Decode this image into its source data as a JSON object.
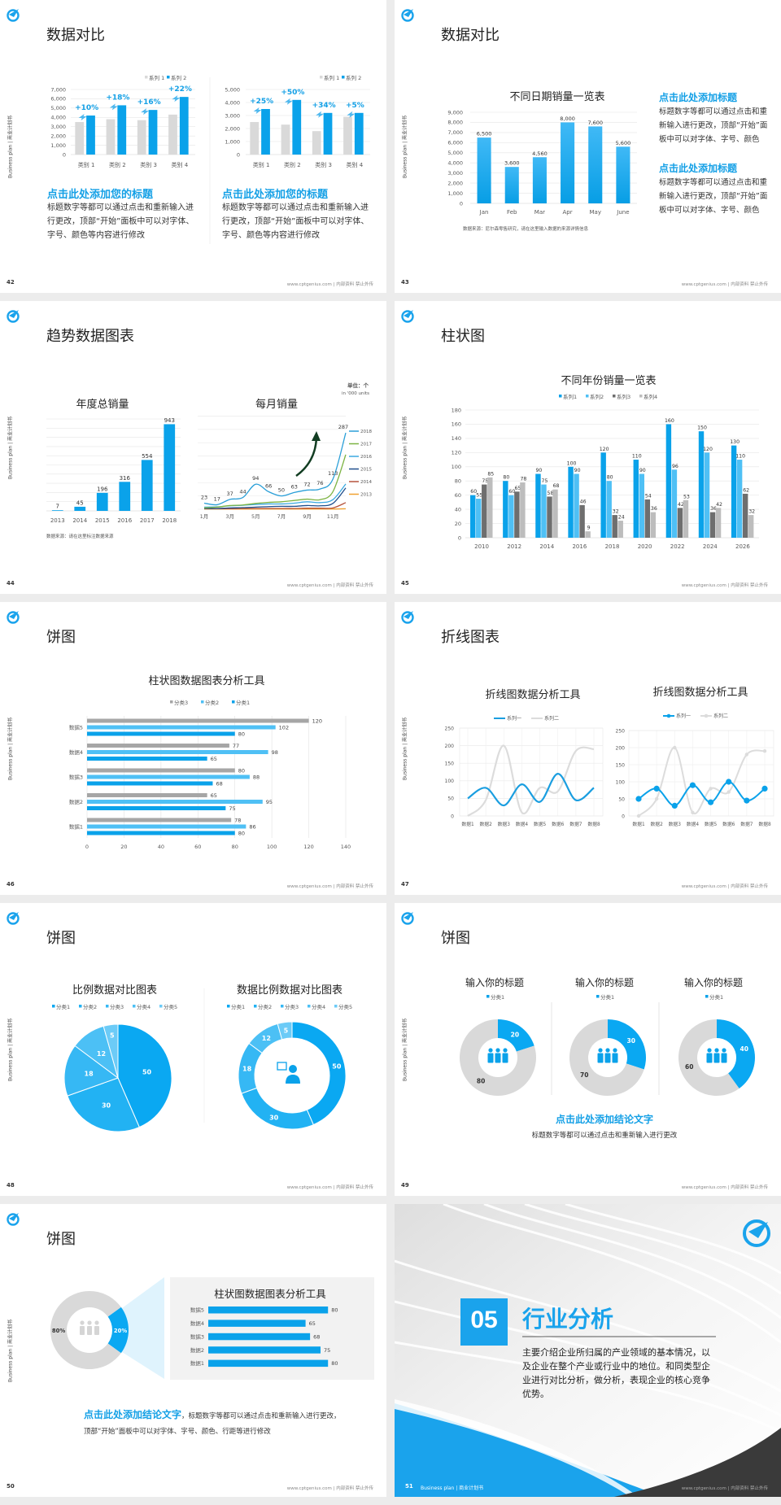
{
  "common": {
    "side_label": "Business plan | 商业计划书",
    "footer": "www.cptgenius.com | 内部资料 禁止外传"
  },
  "slides": {
    "s42": {
      "page": "42",
      "title": "数据对比",
      "blocks": [
        {
          "heading": "点击此处添加您的标题",
          "body": "标题数字等都可以通过点击和重新输入进行更改，顶部“开始”面板中可以对字体、字号、颜色等内容进行修改"
        },
        {
          "heading": "点击此处添加您的标题",
          "body": "标题数字等都可以通过点击和重新输入进行更改，顶部“开始”面板中可以对字体、字号、颜色等内容进行修改"
        }
      ]
    },
    "s43": {
      "page": "43",
      "title": "数据对比",
      "source": "数据来源：尼尔森零售研究，请在这里输入数据的来源详情信息",
      "blocks": [
        {
          "heading": "点击此处添加标题",
          "body": "标题数字等都可以通过点击和重新输入进行更改，顶部“开始”面板中可以对字体、字号、颜色"
        },
        {
          "heading": "点击此处添加标题",
          "body": "标题数字等都可以通过点击和重新输入进行更改，顶部“开始”面板中可以对字体、字号、颜色"
        }
      ]
    },
    "s44": {
      "page": "44",
      "title": "趋势数据图表",
      "unit": "单位：个",
      "unit_en": "in '000 units",
      "source": "数据来源：请在这里标注数据来源"
    },
    "s45": {
      "page": "45",
      "title": "柱状图"
    },
    "s46": {
      "page": "46",
      "title": "饼图"
    },
    "s47": {
      "page": "47",
      "title": "折线图表"
    },
    "s48": {
      "page": "48",
      "title": "饼图"
    },
    "s49": {
      "page": "49",
      "title": "饼图",
      "conclusion": "点击此处添加结论文字",
      "body": "标题数字等都可以通过点击和重新输入进行更改"
    },
    "s50": {
      "page": "50",
      "title": "饼图",
      "conclusion": "点击此处添加结论文字",
      "body": "，标题数字等都可以通过点击和重新输入进行更改，顶部“开始”面板中可以对字体、字号、颜色、行距等进行修改"
    },
    "s51": {
      "page": "51",
      "number": "05",
      "title": "行业分析",
      "body": "主要介绍企业所归属的产业领域的基本情况，以及企业在整个产业或行业中的地位。和同类型企业进行对比分析，做分析，表现企业的核心竞争优势。",
      "footer_label": "Business plan | 商业计划书"
    }
  },
  "colors": {
    "accent": "#0aa2ea",
    "light_blue": "#55c3f5",
    "gray": "#d9d9d9",
    "dark_gray": "#7a7a7a",
    "mid_gray": "#bfbfbf",
    "dark": "#3a3a3a"
  },
  "chart_data": [
    {
      "type": "bar",
      "categories": [
        "类别 1",
        "类别 2",
        "类别 3",
        "类别 4"
      ],
      "ylim": [
        0,
        7000
      ],
      "yticks": [
        "0",
        "1,000",
        "2,000",
        "3,000",
        "4,000",
        "5,000",
        "6,000",
        "7,000"
      ],
      "series": [
        {
          "name": "系列 1",
          "color": "#d9d9d9",
          "values": [
            3500,
            3800,
            3700,
            4300
          ]
        },
        {
          "name": "系列 2",
          "color": "#0aa2ea",
          "values": [
            4200,
            5300,
            4800,
            6200
          ]
        }
      ],
      "annotations": [
        "+10%",
        "+18%",
        "+16%",
        "+22%"
      ],
      "legend": "top-right",
      "grid": true
    },
    {
      "type": "bar",
      "categories": [
        "类别 1",
        "类别 2",
        "类别 3",
        "类别 4"
      ],
      "ylim": [
        0,
        5000
      ],
      "yticks": [
        "0",
        "1,000",
        "2,000",
        "3,000",
        "4,000",
        "5,000"
      ],
      "series": [
        {
          "name": "系列 1",
          "color": "#d9d9d9",
          "values": [
            2500,
            2300,
            1800,
            2900
          ]
        },
        {
          "name": "系列 2",
          "color": "#0aa2ea",
          "values": [
            3500,
            4200,
            3200,
            3200
          ]
        }
      ],
      "annotations": [
        "+25%",
        "+50%",
        "+34%",
        "+5%"
      ],
      "legend": "top-right",
      "grid": true
    },
    {
      "type": "bar",
      "title": "不同日期销量一览表",
      "categories": [
        "Jan",
        "Feb",
        "Mar",
        "Apr",
        "May",
        "June"
      ],
      "ylim": [
        0,
        9000
      ],
      "yticks": [
        "0",
        "1,000",
        "2,000",
        "3,000",
        "4,000",
        "5,000",
        "6,000",
        "7,000",
        "8,000",
        "9,000"
      ],
      "series": [
        {
          "color": "#19a7ee",
          "values": [
            6500,
            3600,
            4560,
            8000,
            7600,
            5600
          ],
          "labels": [
            "6,500",
            "3,600",
            "4,560",
            "8,000",
            "7,600",
            "5,600"
          ]
        }
      ],
      "grid": true
    },
    {
      "type": "bar",
      "title": "年度总销量",
      "categories": [
        "2013",
        "2014",
        "2015",
        "2016",
        "2017",
        "2018"
      ],
      "ylim": [
        0,
        1000
      ],
      "series": [
        {
          "color": "#0aa2ea",
          "values": [
            7,
            45,
            196,
            316,
            554,
            943
          ]
        }
      ],
      "grid": true
    },
    {
      "type": "line",
      "title": "每月销量",
      "xticks": [
        "1月",
        "3月",
        "5月",
        "7月",
        "9月",
        "11月"
      ],
      "months": 12,
      "ylim": [
        0,
        350
      ],
      "legend": "right",
      "series": [
        {
          "name": "2018",
          "color": "#2a9fd8",
          "values": [
            23,
            17,
            37,
            44,
            94,
            66,
            50,
            63,
            72,
            76,
            113,
            287
          ],
          "labels": true
        },
        {
          "name": "2017",
          "color": "#7cb342",
          "values": [
            5,
            8,
            14,
            16,
            22,
            26,
            28,
            33,
            38,
            36,
            66,
            205
          ]
        },
        {
          "name": "2016",
          "color": "#3aa8e0",
          "values": [
            8,
            9,
            13,
            15,
            18,
            20,
            20,
            23,
            28,
            25,
            36,
            95
          ]
        },
        {
          "name": "2015",
          "color": "#1f4e8c",
          "values": [
            3,
            3,
            5,
            6,
            8,
            10,
            11,
            11,
            14,
            13,
            22,
            80
          ]
        },
        {
          "name": "2014",
          "color": "#b5533c",
          "values": [
            2,
            2,
            2,
            3,
            3,
            3,
            3,
            3,
            4,
            4,
            5,
            25
          ]
        },
        {
          "name": "2013",
          "color": "#f0a030",
          "values": [
            1,
            1,
            1,
            1,
            1,
            1,
            1,
            1,
            1,
            1,
            1,
            2
          ]
        }
      ]
    },
    {
      "type": "bar",
      "title": "不同年份销量一览表",
      "categories": [
        "2010",
        "2012",
        "2014",
        "2016",
        "2018",
        "2020",
        "2022",
        "2024",
        "2026"
      ],
      "ylim": [
        0,
        180
      ],
      "yticks": [
        "0",
        "20",
        "40",
        "60",
        "80",
        "100",
        "120",
        "140",
        "160",
        "180"
      ],
      "legend": "top",
      "series": [
        {
          "name": "系列1",
          "color": "#0aa2ea",
          "values": [
            60,
            80,
            90,
            100,
            120,
            110,
            160,
            150,
            130
          ]
        },
        {
          "name": "系列2",
          "color": "#4fc0f5",
          "values": [
            55,
            60,
            75,
            90,
            80,
            90,
            96,
            120,
            110
          ]
        },
        {
          "name": "系列3",
          "color": "#6e6e6e",
          "values": [
            75,
            65,
            58,
            46,
            32,
            54,
            42,
            36,
            62
          ]
        },
        {
          "name": "系列4",
          "color": "#bdbdbd",
          "values": [
            85,
            78,
            68,
            9,
            24,
            36,
            53,
            42,
            32
          ]
        }
      ],
      "grid": true
    },
    {
      "type": "bar",
      "orientation": "horizontal",
      "title": "柱状图数据图表分析工具",
      "categories": [
        "数据5",
        "数据4",
        "数据3",
        "数据2",
        "数据1"
      ],
      "xlim": [
        0,
        140
      ],
      "xticks": [
        "0",
        "20",
        "40",
        "60",
        "80",
        "100",
        "120",
        "140"
      ],
      "legend": "top",
      "series": [
        {
          "name": "分类3",
          "color": "#a6a6a6",
          "values": [
            120,
            77,
            80,
            65,
            78
          ]
        },
        {
          "name": "分类2",
          "color": "#4fc0f5",
          "values": [
            102,
            98,
            88,
            95,
            86
          ]
        },
        {
          "name": "分类1",
          "color": "#0aa2ea",
          "values": [
            80,
            65,
            68,
            75,
            80
          ]
        }
      ],
      "grid": true
    },
    {
      "type": "line",
      "title": "折线图数据分析工具",
      "categories": [
        "数据1",
        "数据2",
        "数据3",
        "数据4",
        "数据5",
        "数据6",
        "数据7",
        "数据8"
      ],
      "ylim": [
        0,
        250
      ],
      "yticks": [
        "0",
        "50",
        "100",
        "150",
        "200",
        "250"
      ],
      "legend": "top",
      "markers": false,
      "series": [
        {
          "name": "系列一",
          "color": "#1a9ee0",
          "values": [
            50,
            80,
            30,
            90,
            40,
            120,
            45,
            80
          ]
        },
        {
          "name": "系列二",
          "color": "#dcdcdc",
          "values": [
            0,
            45,
            200,
            10,
            80,
            70,
            185,
            190
          ]
        }
      ]
    },
    {
      "type": "line",
      "title": "折线图数据分析工具",
      "categories": [
        "数据1",
        "数据2",
        "数据3",
        "数据4",
        "数据5",
        "数据6",
        "数据7",
        "数据8"
      ],
      "ylim": [
        0,
        250
      ],
      "yticks": [
        "0",
        "50",
        "100",
        "150",
        "200",
        "250"
      ],
      "legend": "top",
      "markers": true,
      "series": [
        {
          "name": "系列一",
          "color": "#0aa2ea",
          "values": [
            50,
            80,
            30,
            90,
            40,
            100,
            45,
            80
          ]
        },
        {
          "name": "系列二",
          "color": "#dcdcdc",
          "values": [
            0,
            50,
            200,
            10,
            80,
            70,
            180,
            190
          ]
        }
      ]
    },
    {
      "type": "pie",
      "title": "比例数据对比图表",
      "categories": [
        "分类1",
        "分类2",
        "分类3",
        "分类4",
        "分类5"
      ],
      "values": [
        50,
        30,
        18,
        12,
        5
      ],
      "colors": [
        "#0aa8f2",
        "#22b2f3",
        "#36b8f4",
        "#4cc0f5",
        "#6ccbf7"
      ],
      "legend": "top"
    },
    {
      "type": "pie",
      "donut": true,
      "title": "数据比例数据对比图表",
      "categories": [
        "分类1",
        "分类2",
        "分类3",
        "分类4",
        "分类5"
      ],
      "values": [
        50,
        30,
        18,
        12,
        5
      ],
      "colors": [
        "#0aa8f2",
        "#22b2f3",
        "#36b8f4",
        "#4cc0f5",
        "#6ccbf7"
      ],
      "legend": "top"
    },
    {
      "type": "pie",
      "donut": true,
      "title": "输入你的标题",
      "categories": [
        "分类1",
        ""
      ],
      "values": [
        20,
        80
      ],
      "colors": [
        "#0aa8f2",
        "#d9d9d9"
      ],
      "legend": "top"
    },
    {
      "type": "pie",
      "donut": true,
      "title": "输入你的标题",
      "categories": [
        "分类1",
        ""
      ],
      "values": [
        30,
        70
      ],
      "colors": [
        "#0aa8f2",
        "#d9d9d9"
      ],
      "legend": "top"
    },
    {
      "type": "pie",
      "donut": true,
      "title": "输入你的标题",
      "categories": [
        "分类1",
        ""
      ],
      "values": [
        40,
        60
      ],
      "colors": [
        "#0aa8f2",
        "#d9d9d9"
      ],
      "legend": "top"
    },
    {
      "type": "pie",
      "donut": true,
      "values": [
        20,
        80
      ],
      "labels": [
        "20%",
        "80%"
      ],
      "colors": [
        "#0aa8f2",
        "#d9d9d9"
      ]
    },
    {
      "type": "bar",
      "orientation": "horizontal",
      "title": "柱状图数据图表分析工具",
      "categories": [
        "数据5",
        "数据4",
        "数据3",
        "数据2",
        "数据1"
      ],
      "xlim": [
        0,
        100
      ],
      "series": [
        {
          "color": "#0aa2ea",
          "values": [
            80,
            65,
            68,
            75,
            80
          ]
        }
      ]
    }
  ]
}
